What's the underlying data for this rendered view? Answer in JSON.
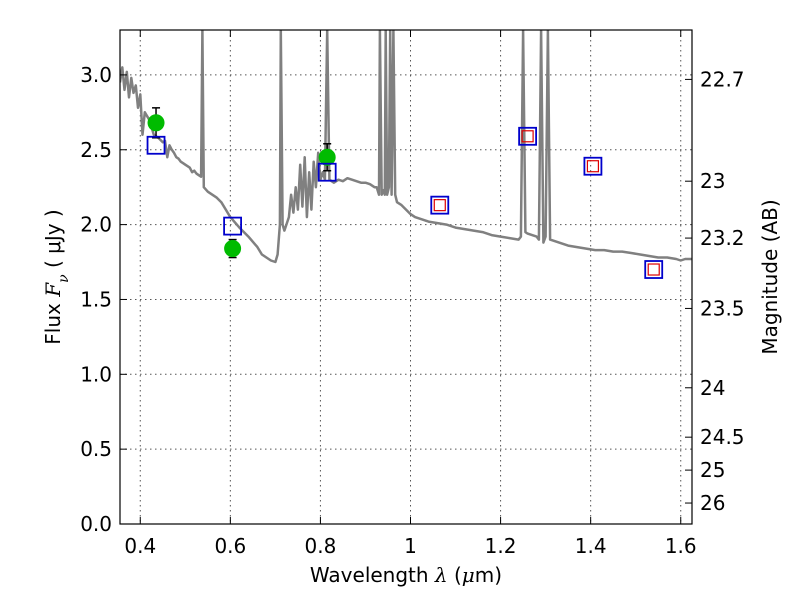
{
  "chart_data": {
    "type": "line",
    "title": "",
    "xlabel": "Wavelength  λ (μm)",
    "xlabel_parts": {
      "prefix": "Wavelength ",
      "symbol": "λ",
      "unit_open": " (",
      "unit_symbol": "μ",
      "unit_rest": "m)"
    },
    "ylabel": "Flux  Fν  ( μJy )",
    "ylabel_parts": {
      "prefix": "Flux ",
      "symbol": "F",
      "subscript": "ν",
      "unit": "  ( μJy )"
    },
    "y2label": "Magnitude (AB)",
    "xlim": [
      0.355,
      1.625
    ],
    "ylim": [
      0.0,
      3.3
    ],
    "grid": true,
    "x_ticks": [
      {
        "value": 0.4,
        "label": "0.4"
      },
      {
        "value": 0.6,
        "label": "0.6"
      },
      {
        "value": 0.8,
        "label": "0.8"
      },
      {
        "value": 1.0,
        "label": "1"
      },
      {
        "value": 1.2,
        "label": "1.2"
      },
      {
        "value": 1.4,
        "label": "1.4"
      },
      {
        "value": 1.6,
        "label": "1.6"
      }
    ],
    "y_ticks": [
      {
        "value": 0.0,
        "label": "0.0"
      },
      {
        "value": 0.5,
        "label": "0.5"
      },
      {
        "value": 1.0,
        "label": "1.0"
      },
      {
        "value": 1.5,
        "label": "1.5"
      },
      {
        "value": 2.0,
        "label": "2.0"
      },
      {
        "value": 2.5,
        "label": "2.5"
      },
      {
        "value": 3.0,
        "label": "3.0"
      }
    ],
    "y2_ticks": [
      {
        "flux": 2.97,
        "label": "22.7"
      },
      {
        "flux": 2.29,
        "label": "23"
      },
      {
        "flux": 1.91,
        "label": "23.2"
      },
      {
        "flux": 1.44,
        "label": "23.5"
      },
      {
        "flux": 0.91,
        "label": "24"
      },
      {
        "flux": 0.58,
        "label": "24.5"
      },
      {
        "flux": 0.36,
        "label": "25"
      },
      {
        "flux": 0.14,
        "label": "26"
      }
    ],
    "colors": {
      "model": "#808080",
      "observed": "#00bb00",
      "errorbar": "#000000",
      "model_band": "#0000cc",
      "inner_square": "#dd0000",
      "grid": "#555555"
    },
    "series": [
      {
        "type": "line",
        "points": [
          [
            0.355,
            2.95
          ],
          [
            0.36,
            3.05
          ],
          [
            0.365,
            2.9
          ],
          [
            0.37,
            3.02
          ],
          [
            0.375,
            2.85
          ],
          [
            0.38,
            2.98
          ],
          [
            0.385,
            2.88
          ],
          [
            0.39,
            2.93
          ],
          [
            0.395,
            2.78
          ],
          [
            0.4,
            2.87
          ],
          [
            0.405,
            2.6
          ],
          [
            0.41,
            2.75
          ],
          [
            0.42,
            2.7
          ],
          [
            0.43,
            2.6
          ],
          [
            0.44,
            2.58
          ],
          [
            0.45,
            2.55
          ],
          [
            0.455,
            2.56
          ],
          [
            0.46,
            2.45
          ],
          [
            0.465,
            2.53
          ],
          [
            0.47,
            2.5
          ],
          [
            0.475,
            2.48
          ],
          [
            0.48,
            2.45
          ],
          [
            0.485,
            2.44
          ],
          [
            0.49,
            2.42
          ],
          [
            0.495,
            2.41
          ],
          [
            0.5,
            2.4
          ],
          [
            0.505,
            2.39
          ],
          [
            0.51,
            2.38
          ],
          [
            0.515,
            2.35
          ],
          [
            0.52,
            2.36
          ],
          [
            0.525,
            2.34
          ],
          [
            0.53,
            2.33
          ],
          [
            0.535,
            2.32
          ],
          [
            0.538,
            3.3
          ],
          [
            0.541,
            2.25
          ],
          [
            0.55,
            2.22
          ],
          [
            0.56,
            2.2
          ],
          [
            0.57,
            2.18
          ],
          [
            0.58,
            2.15
          ],
          [
            0.59,
            2.1
          ],
          [
            0.6,
            2.05
          ],
          [
            0.62,
            1.98
          ],
          [
            0.64,
            1.92
          ],
          [
            0.66,
            1.85
          ],
          [
            0.67,
            1.8
          ],
          [
            0.68,
            1.78
          ],
          [
            0.69,
            1.76
          ],
          [
            0.7,
            1.75
          ],
          [
            0.705,
            1.8
          ],
          [
            0.71,
            2.0
          ],
          [
            0.712,
            3.3
          ],
          [
            0.716,
            2.0
          ],
          [
            0.72,
            1.96
          ],
          [
            0.73,
            2.05
          ],
          [
            0.735,
            2.2
          ],
          [
            0.74,
            2.08
          ],
          [
            0.745,
            2.25
          ],
          [
            0.75,
            2.1
          ],
          [
            0.755,
            2.4
          ],
          [
            0.76,
            2.12
          ],
          [
            0.765,
            2.45
          ],
          [
            0.77,
            2.05
          ],
          [
            0.775,
            2.35
          ],
          [
            0.78,
            2.1
          ],
          [
            0.785,
            2.42
          ],
          [
            0.79,
            2.25
          ],
          [
            0.795,
            2.48
          ],
          [
            0.8,
            2.3
          ],
          [
            0.805,
            2.35
          ],
          [
            0.81,
            2.3
          ],
          [
            0.815,
            3.3
          ],
          [
            0.82,
            2.3
          ],
          [
            0.83,
            2.28
          ],
          [
            0.84,
            2.3
          ],
          [
            0.85,
            2.29
          ],
          [
            0.86,
            2.31
          ],
          [
            0.87,
            2.3
          ],
          [
            0.88,
            2.29
          ],
          [
            0.89,
            2.28
          ],
          [
            0.9,
            2.28
          ],
          [
            0.91,
            2.27
          ],
          [
            0.92,
            2.25
          ],
          [
            0.925,
            2.25
          ],
          [
            0.93,
            2.2
          ],
          [
            0.932,
            3.3
          ],
          [
            0.936,
            2.2
          ],
          [
            0.94,
            2.23
          ],
          [
            0.943,
            2.2
          ],
          [
            0.945,
            3.3
          ],
          [
            0.948,
            2.2
          ],
          [
            0.952,
            2.25
          ],
          [
            0.955,
            3.3
          ],
          [
            0.958,
            2.2
          ],
          [
            0.962,
            3.3
          ],
          [
            0.966,
            2.2
          ],
          [
            0.97,
            2.15
          ],
          [
            0.98,
            2.13
          ],
          [
            0.99,
            2.1
          ],
          [
            1.0,
            2.07
          ],
          [
            1.01,
            2.05
          ],
          [
            1.02,
            2.04
          ],
          [
            1.03,
            2.03
          ],
          [
            1.04,
            2.02
          ],
          [
            1.06,
            2.01
          ],
          [
            1.08,
            2.0
          ],
          [
            1.1,
            1.98
          ],
          [
            1.12,
            1.97
          ],
          [
            1.14,
            1.96
          ],
          [
            1.16,
            1.95
          ],
          [
            1.18,
            1.93
          ],
          [
            1.2,
            1.92
          ],
          [
            1.22,
            1.91
          ],
          [
            1.24,
            1.9
          ],
          [
            1.245,
            1.92
          ],
          [
            1.25,
            3.3
          ],
          [
            1.255,
            1.95
          ],
          [
            1.26,
            1.94
          ],
          [
            1.27,
            1.93
          ],
          [
            1.28,
            1.92
          ],
          [
            1.285,
            1.9
          ],
          [
            1.29,
            3.3
          ],
          [
            1.295,
            1.88
          ],
          [
            1.3,
            1.92
          ],
          [
            1.305,
            3.3
          ],
          [
            1.31,
            1.9
          ],
          [
            1.33,
            1.88
          ],
          [
            1.35,
            1.86
          ],
          [
            1.37,
            1.85
          ],
          [
            1.39,
            1.84
          ],
          [
            1.41,
            1.83
          ],
          [
            1.43,
            1.83
          ],
          [
            1.45,
            1.82
          ],
          [
            1.47,
            1.82
          ],
          [
            1.49,
            1.81
          ],
          [
            1.51,
            1.8
          ],
          [
            1.53,
            1.79
          ],
          [
            1.55,
            1.78
          ],
          [
            1.57,
            1.78
          ],
          [
            1.59,
            1.77
          ],
          [
            1.6,
            1.76
          ],
          [
            1.61,
            1.77
          ],
          [
            1.625,
            1.77
          ]
        ]
      },
      {
        "type": "scatter",
        "marker": "circle",
        "points": [
          {
            "x": 0.435,
            "y": 2.68,
            "yerr": 0.1
          },
          {
            "x": 0.605,
            "y": 1.84,
            "yerr": 0.06
          },
          {
            "x": 0.815,
            "y": 2.45,
            "yerr": 0.09
          }
        ]
      },
      {
        "type": "scatter",
        "marker": "square",
        "points": [
          {
            "x": 0.435,
            "y": 2.53
          },
          {
            "x": 0.605,
            "y": 1.99
          },
          {
            "x": 0.815,
            "y": 2.35
          },
          {
            "x": 1.065,
            "y": 2.13
          },
          {
            "x": 1.26,
            "y": 2.59
          },
          {
            "x": 1.405,
            "y": 2.39
          },
          {
            "x": 1.54,
            "y": 1.7
          }
        ]
      },
      {
        "type": "scatter",
        "marker": "square-inner",
        "points": [
          {
            "x": 1.065,
            "y": 2.13
          },
          {
            "x": 1.26,
            "y": 2.59
          },
          {
            "x": 1.405,
            "y": 2.39
          },
          {
            "x": 1.54,
            "y": 1.7
          }
        ]
      }
    ]
  }
}
